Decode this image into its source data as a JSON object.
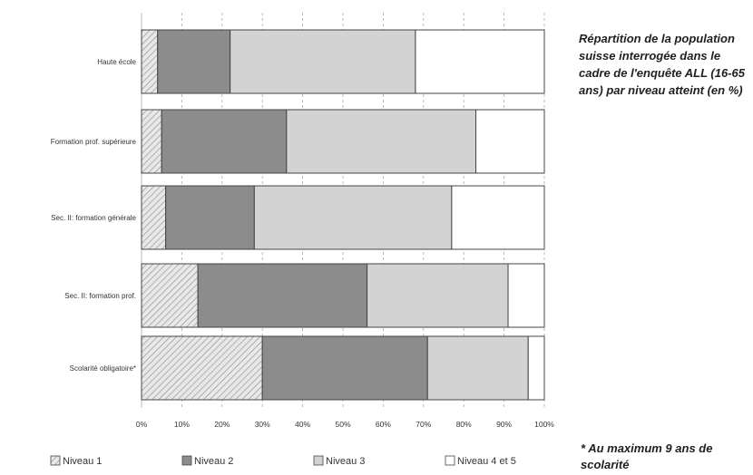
{
  "side_title": "Répartition de la population suisse interrogée dans le cadre de l'enquête ALL (16-65 ans) par niveau atteint (en %)",
  "footnote": "* Au maximum 9 ans de scolarité",
  "colors": {
    "niveau1_fill": "#e8e8e8",
    "niveau1_hatch": "#8a8a8a",
    "niveau2": "#8c8c8c",
    "niveau3": "#d3d3d3",
    "niveau45": "#ffffff",
    "grid": "#aaaaaa",
    "bar_stroke": "#444444"
  },
  "chart_data": {
    "type": "bar",
    "orientation": "horizontal",
    "stacked": true,
    "categories": [
      "Haute école",
      "Formation prof. supérieure",
      "Sec. II: formation générale",
      "Sec. II: formation prof.",
      "Scolarité obligatoire*"
    ],
    "series": [
      {
        "name": "Niveau 1",
        "values": [
          4,
          5,
          6,
          14,
          30
        ]
      },
      {
        "name": "Niveau 2",
        "values": [
          18,
          31,
          22,
          42,
          41
        ]
      },
      {
        "name": "Niveau 3",
        "values": [
          46,
          47,
          49,
          35,
          25
        ]
      },
      {
        "name": "Niveau 4 et 5",
        "values": [
          32,
          17,
          23,
          9,
          4
        ]
      }
    ],
    "xlim": [
      0,
      100
    ],
    "x_ticks": [
      "0%",
      "10%",
      "20%",
      "30%",
      "40%",
      "50%",
      "60%",
      "70%",
      "80%",
      "90%",
      "100%"
    ],
    "grid": true,
    "legend_position": "bottom"
  }
}
